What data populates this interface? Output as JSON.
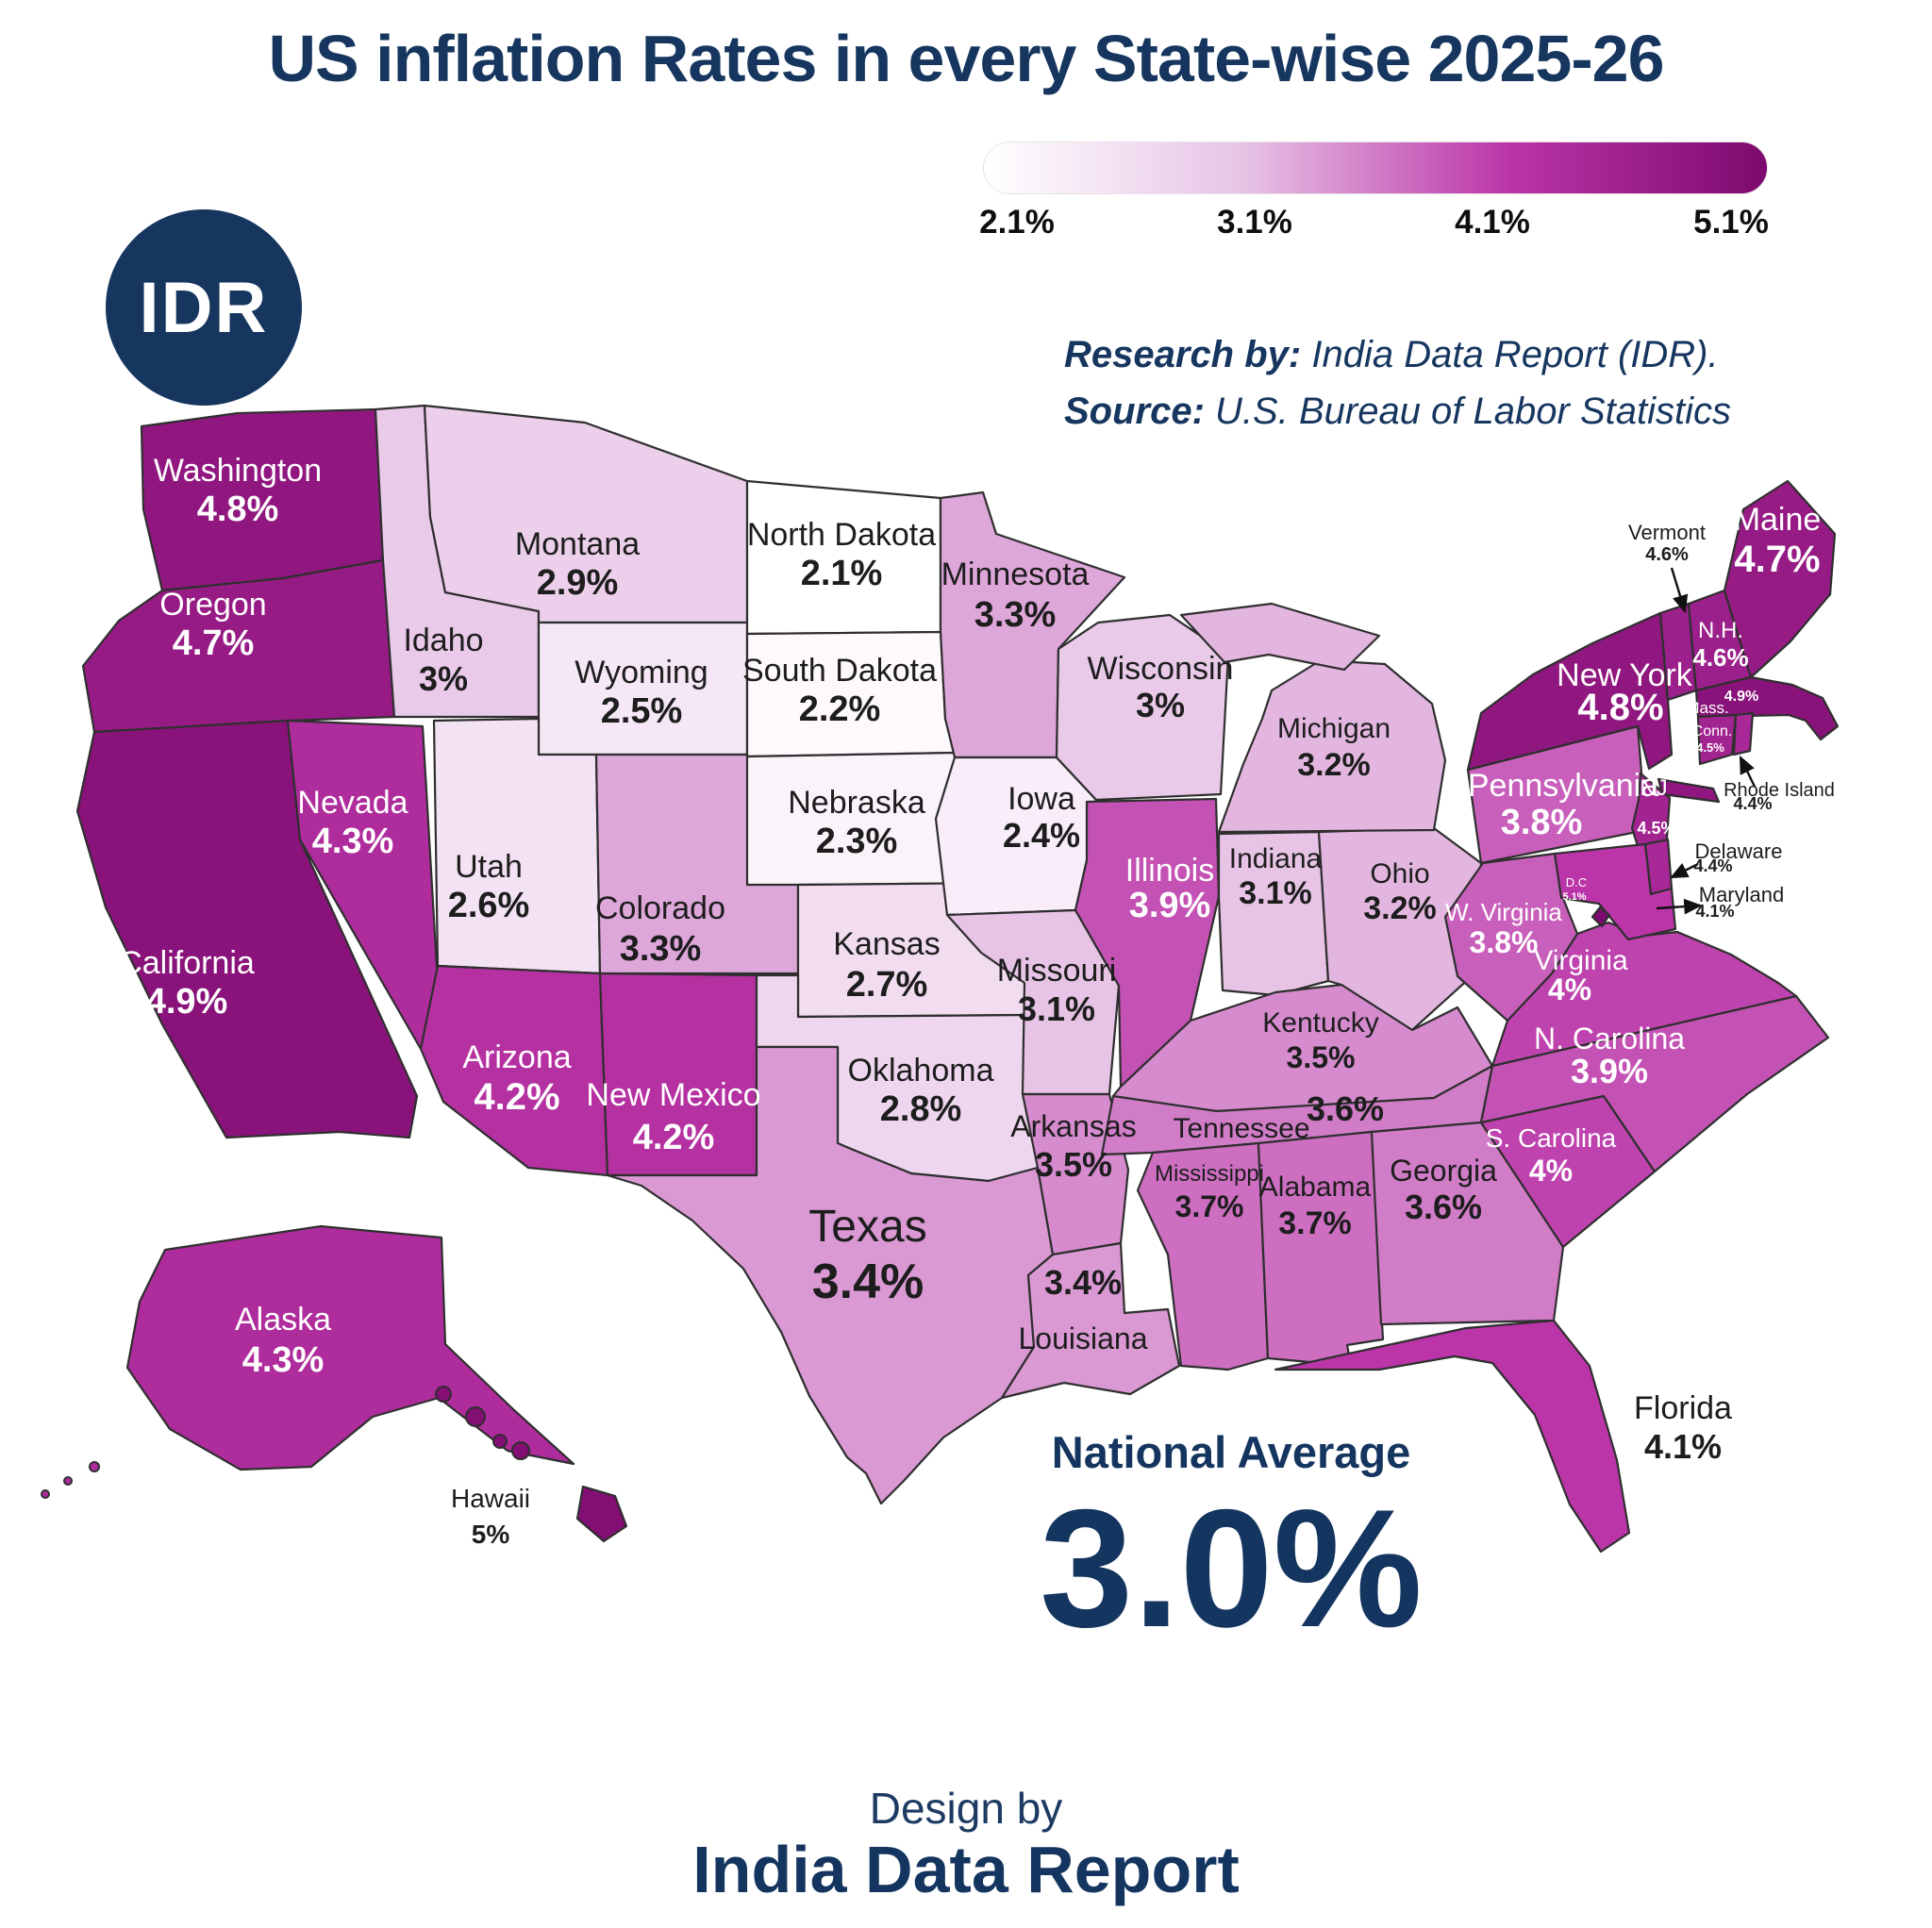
{
  "title": "US inflation Rates in every State-wise 2025-26",
  "logo": {
    "text": "IDR"
  },
  "credits": {
    "research_label": "Research by:",
    "research_value": " India Data Report (IDR).",
    "source_label": "Source:",
    "source_value": " U.S. Bureau of Labor Statistics"
  },
  "footer": {
    "design_by": "Design by",
    "brand": "India Data Report"
  },
  "theme": {
    "navy": "#16365f",
    "label_dark": "#1d1d1d",
    "label_light": "#ffffff"
  },
  "chart_data": {
    "type": "heatmap",
    "subtype": "us-choropleth-map",
    "title": "US inflation Rates in every State-wise 2025-26",
    "unit": "%",
    "colorbar": {
      "min": 2.1,
      "max": 5.1,
      "ticks": [
        "2.1%",
        "3.1%",
        "4.1%",
        "5.1%"
      ],
      "stops": [
        [
          2.1,
          "#ffffff"
        ],
        [
          3.1,
          "#e7c4e6"
        ],
        [
          4.1,
          "#bb35a8"
        ],
        [
          5.1,
          "#7d0a6e"
        ]
      ]
    },
    "national_average": {
      "label": "National Average",
      "value": 3.0,
      "value_label": "3.0%"
    },
    "states": [
      {
        "id": "WA",
        "name": "Washington",
        "value": 4.8,
        "value_label": "4.8%"
      },
      {
        "id": "OR",
        "name": "Oregon",
        "value": 4.7,
        "value_label": "4.7%"
      },
      {
        "id": "CA",
        "name": "California",
        "value": 4.9,
        "value_label": "4.9%"
      },
      {
        "id": "NV",
        "name": "Nevada",
        "value": 4.3,
        "value_label": "4.3%"
      },
      {
        "id": "ID",
        "name": "Idaho",
        "value": 3.0,
        "value_label": "3%"
      },
      {
        "id": "MT",
        "name": "Montana",
        "value": 2.9,
        "value_label": "2.9%"
      },
      {
        "id": "WY",
        "name": "Wyoming",
        "value": 2.5,
        "value_label": "2.5%"
      },
      {
        "id": "UT",
        "name": "Utah",
        "value": 2.6,
        "value_label": "2.6%"
      },
      {
        "id": "CO",
        "name": "Colorado",
        "value": 3.3,
        "value_label": "3.3%"
      },
      {
        "id": "AZ",
        "name": "Arizona",
        "value": 4.2,
        "value_label": "4.2%"
      },
      {
        "id": "NM",
        "name": "New Mexico",
        "value": 4.2,
        "value_label": "4.2%"
      },
      {
        "id": "ND",
        "name": "North Dakota",
        "value": 2.1,
        "value_label": "2.1%"
      },
      {
        "id": "SD",
        "name": "South Dakota",
        "value": 2.2,
        "value_label": "2.2%"
      },
      {
        "id": "NE",
        "name": "Nebraska",
        "value": 2.3,
        "value_label": "2.3%"
      },
      {
        "id": "KS",
        "name": "Kansas",
        "value": 2.7,
        "value_label": "2.7%"
      },
      {
        "id": "OK",
        "name": "Oklahoma",
        "value": 2.8,
        "value_label": "2.8%"
      },
      {
        "id": "TX",
        "name": "Texas",
        "value": 3.4,
        "value_label": "3.4%"
      },
      {
        "id": "MN",
        "name": "Minnesota",
        "value": 3.3,
        "value_label": "3.3%"
      },
      {
        "id": "IA",
        "name": "Iowa",
        "value": 2.4,
        "value_label": "2.4%"
      },
      {
        "id": "MO",
        "name": "Missouri",
        "value": 3.1,
        "value_label": "3.1%"
      },
      {
        "id": "AR",
        "name": "Arkansas",
        "value": 3.5,
        "value_label": "3.5%"
      },
      {
        "id": "LA",
        "name": "Louisiana",
        "value": 3.4,
        "value_label": "3.4%"
      },
      {
        "id": "WI",
        "name": "Wisconsin",
        "value": 3.0,
        "value_label": "3%"
      },
      {
        "id": "IL",
        "name": "Illinois",
        "value": 3.9,
        "value_label": "3.9%"
      },
      {
        "id": "IN",
        "name": "Indiana",
        "value": 3.1,
        "value_label": "3.1%"
      },
      {
        "id": "OH",
        "name": "Ohio",
        "value": 3.2,
        "value_label": "3.2%"
      },
      {
        "id": "MI",
        "name": "Michigan",
        "value": 3.2,
        "value_label": "3.2%"
      },
      {
        "id": "KY",
        "name": "Kentucky",
        "value": 3.5,
        "value_label": "3.5%"
      },
      {
        "id": "TN",
        "name": "Tennessee",
        "value": 3.6,
        "value_label": "3.6%"
      },
      {
        "id": "MS",
        "name": "Mississippi",
        "value": 3.7,
        "value_label": "3.7%"
      },
      {
        "id": "AL",
        "name": "Alabama",
        "value": 3.7,
        "value_label": "3.7%"
      },
      {
        "id": "GA",
        "name": "Georgia",
        "value": 3.6,
        "value_label": "3.6%"
      },
      {
        "id": "FL",
        "name": "Florida",
        "value": 4.1,
        "value_label": "4.1%"
      },
      {
        "id": "SC",
        "name": "S. Carolina",
        "value": 4.0,
        "value_label": "4%"
      },
      {
        "id": "NC",
        "name": "N. Carolina",
        "value": 3.9,
        "value_label": "3.9%"
      },
      {
        "id": "VA",
        "name": "Virginia",
        "value": 4.0,
        "value_label": "4%"
      },
      {
        "id": "WV",
        "name": "W. Virginia",
        "value": 3.8,
        "value_label": "3.8%"
      },
      {
        "id": "PA",
        "name": "Pennsylvania",
        "value": 3.8,
        "value_label": "3.8%"
      },
      {
        "id": "NY",
        "name": "New York",
        "value": 4.8,
        "value_label": "4.8%"
      },
      {
        "id": "VT",
        "name": "Vermont",
        "value": 4.6,
        "value_label": "4.6%"
      },
      {
        "id": "NH",
        "name": "N.H.",
        "value": 4.6,
        "value_label": "4.6%"
      },
      {
        "id": "ME",
        "name": "Maine",
        "value": 4.7,
        "value_label": "4.7%"
      },
      {
        "id": "MA",
        "name": "Mass.",
        "value": 4.9,
        "value_label": "4.9%"
      },
      {
        "id": "CT",
        "name": "Conn.",
        "value": 4.5,
        "value_label": "4.5%"
      },
      {
        "id": "RI",
        "name": "Rhode Island",
        "value": 4.4,
        "value_label": "4.4%"
      },
      {
        "id": "NJ",
        "name": "NJ",
        "value": 4.5,
        "value_label": "4.5%"
      },
      {
        "id": "DE",
        "name": "Delaware",
        "value": 4.4,
        "value_label": "4.4%"
      },
      {
        "id": "MD",
        "name": "Maryland",
        "value": 4.1,
        "value_label": "4.1%"
      },
      {
        "id": "DC",
        "name": "D.C",
        "value": 5.1,
        "value_label": "5.1%"
      },
      {
        "id": "AK",
        "name": "Alaska",
        "value": 4.3,
        "value_label": "4.3%"
      },
      {
        "id": "HI",
        "name": "Hawaii",
        "value": 5.0,
        "value_label": "5%"
      }
    ]
  }
}
